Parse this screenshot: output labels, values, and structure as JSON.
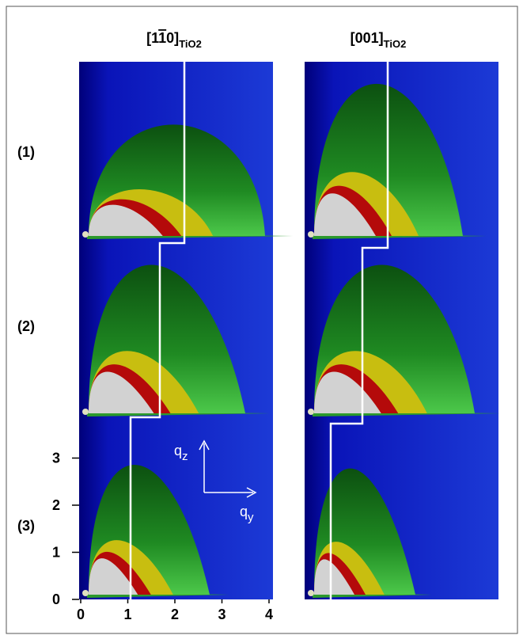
{
  "column_headers": [
    {
      "parts": [
        "[1",
        "1",
        "0]"
      ],
      "subscript": "TiO2"
    },
    {
      "parts": [
        "[001]"
      ],
      "subscript": "TiO2"
    }
  ],
  "row_labels": [
    "(1)",
    "(2)",
    "(3)"
  ],
  "y_axis": {
    "ticks": [
      0,
      1,
      2,
      3
    ]
  },
  "x_axis": {
    "ticks": [
      0,
      1,
      2,
      3,
      4
    ]
  },
  "arrows": [
    {
      "symbol": "q",
      "subscript": "z"
    },
    {
      "symbol": "q",
      "subscript": "y"
    }
  ]
}
